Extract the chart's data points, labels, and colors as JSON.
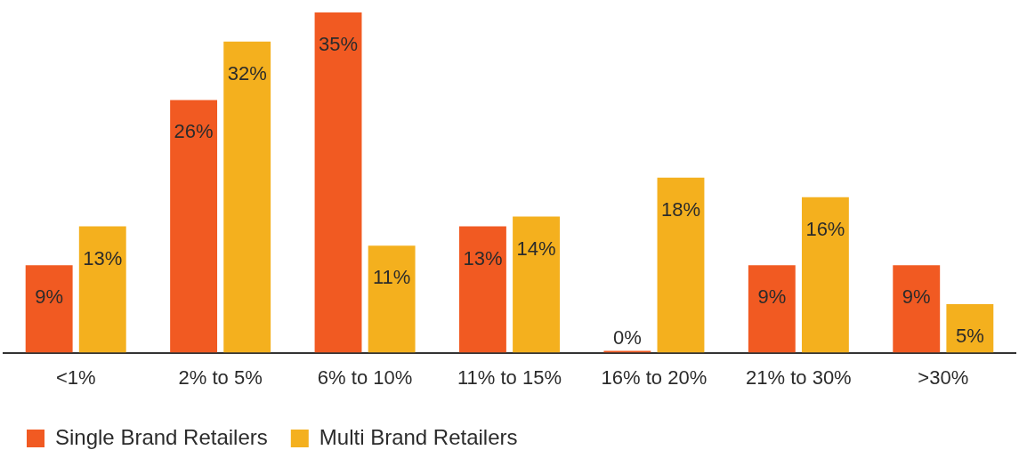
{
  "chart_data": {
    "type": "bar",
    "categories": [
      "<1%",
      "2% to 5%",
      "6% to 10%",
      "11% to 15%",
      "16% to 20%",
      "21% to 30%",
      ">30%"
    ],
    "series": [
      {
        "name": "Single Brand Retailers",
        "color": "#f15a22",
        "values": [
          9,
          26,
          35,
          13,
          0,
          9,
          9
        ],
        "value_labels": [
          "9%",
          "26%",
          "35%",
          "13%",
          "0%",
          "9%",
          "9%"
        ]
      },
      {
        "name": "Multi Brand Retailers",
        "color": "#f4b01e",
        "values": [
          13,
          32,
          11,
          14,
          18,
          16,
          5
        ],
        "value_labels": [
          "13%",
          "32%",
          "11%",
          "14%",
          "18%",
          "16%",
          "5%"
        ]
      }
    ],
    "legend": "bottom left"
  }
}
